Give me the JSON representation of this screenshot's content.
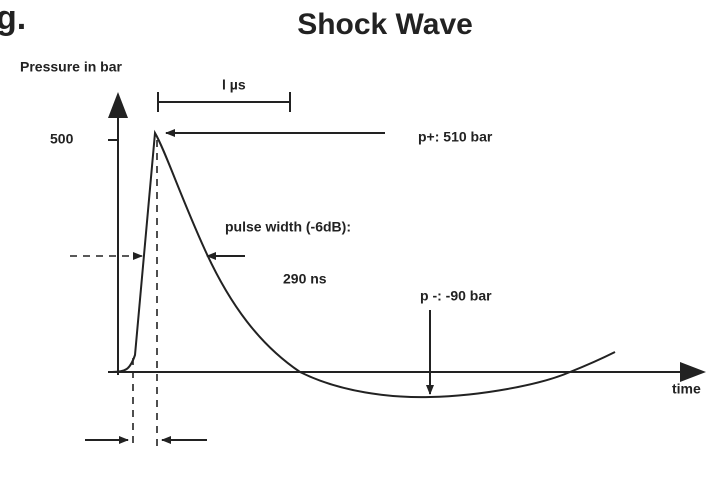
{
  "header": {
    "corner_text": "g.",
    "title": "Shock Wave"
  },
  "axes": {
    "y_label": "Pressure in bar",
    "y_tick": "500",
    "x_label": "time"
  },
  "annotations": {
    "duration": "l µs",
    "peak": "p+:  510 bar",
    "pulse_width": "pulse width (-6dB):",
    "pulse_width_value": "290 ns",
    "negative": "p -: -90 bar"
  }
}
